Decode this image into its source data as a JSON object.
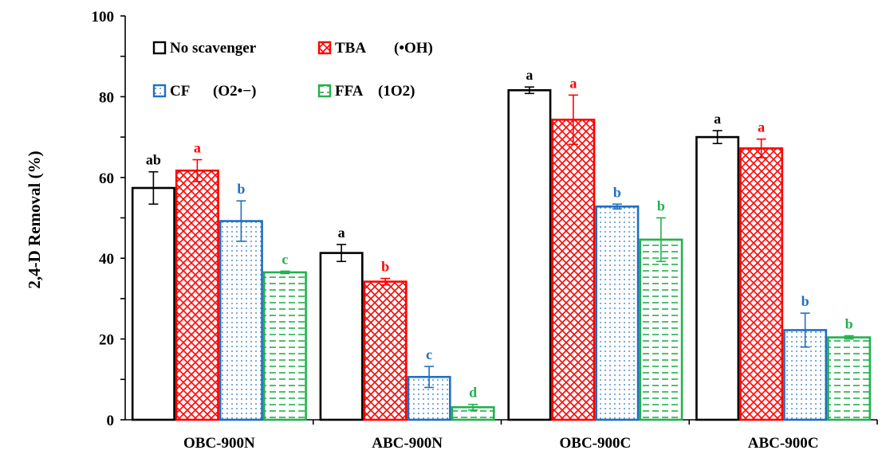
{
  "chart_data": {
    "type": "bar",
    "title": "",
    "xlabel": "",
    "ylabel": "2,4-D Removal (%)",
    "ylim": [
      0,
      100
    ],
    "yticks": [
      0,
      20,
      40,
      60,
      80,
      100
    ],
    "grid": false,
    "legend_position": "top-left",
    "categories": [
      "OBC-900N",
      "ABC-900N",
      "OBC-900C",
      "ABC-900C"
    ],
    "series": [
      {
        "name": "No scavenger",
        "legend_label": "No scavenger",
        "legend_paren": "",
        "pattern": "none",
        "color": "#000000",
        "values": [
          57.4,
          41.3,
          81.6,
          70.0
        ],
        "errors": [
          4.0,
          2.1,
          0.8,
          1.6
        ],
        "significance": [
          "ab",
          "a",
          "a",
          "a"
        ]
      },
      {
        "name": "TBA (•OH)",
        "legend_label": "TBA",
        "legend_paren": "(•OH)",
        "pattern": "crosshatch",
        "color": "#ff0000",
        "values": [
          61.7,
          34.2,
          74.3,
          67.2
        ],
        "errors": [
          2.7,
          0.8,
          6.1,
          2.3
        ],
        "significance": [
          "a",
          "b",
          "a",
          "a"
        ]
      },
      {
        "name": "CF (O2•−)",
        "legend_label": "CF",
        "legend_paren": "(O2•−)",
        "pattern": "dots",
        "color": "#1f6fc1",
        "values": [
          49.2,
          10.6,
          52.8,
          22.2
        ],
        "errors": [
          5.0,
          2.6,
          0.6,
          4.2
        ],
        "significance": [
          "b",
          "c",
          "b",
          "b"
        ]
      },
      {
        "name": "FFA (1O2)",
        "legend_label": "FFA",
        "legend_paren": "(1O2)",
        "pattern": "dashes",
        "color": "#22b14c",
        "values": [
          36.5,
          3.1,
          44.6,
          20.4
        ],
        "errors": [
          0.3,
          0.7,
          5.4,
          0.4
        ],
        "significance": [
          "c",
          "d",
          "b",
          "b"
        ]
      }
    ]
  }
}
